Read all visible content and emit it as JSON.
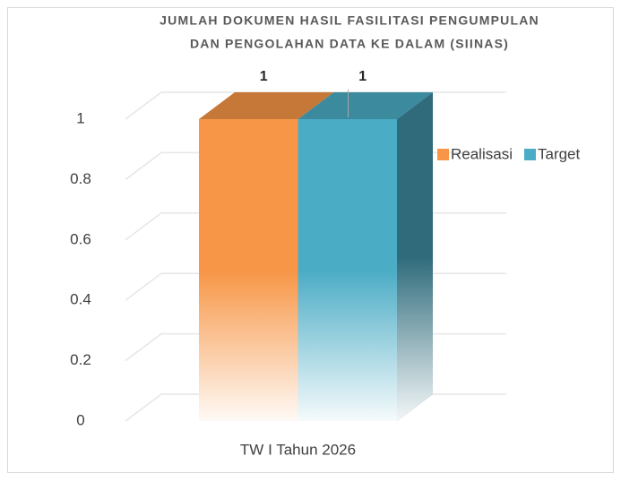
{
  "chart_data": {
    "type": "bar3d",
    "title": [
      "JUMLAH DOKUMEN HASIL FASILITASI PENGUMPULAN",
      "DAN PENGOLAHAN DATA KE DALAM (SIINAS)"
    ],
    "categories": [
      "TW I Tahun 2026"
    ],
    "series": [
      {
        "name": "Realisasi",
        "color": "#f79646",
        "values": [
          1
        ]
      },
      {
        "name": "Target",
        "color": "#4bacc6",
        "values": [
          1
        ]
      }
    ],
    "ylim": [
      0,
      1
    ],
    "yticks": [
      0,
      0.2,
      0.4,
      0.6,
      0.8,
      1
    ],
    "grid": true,
    "legend": "right"
  }
}
